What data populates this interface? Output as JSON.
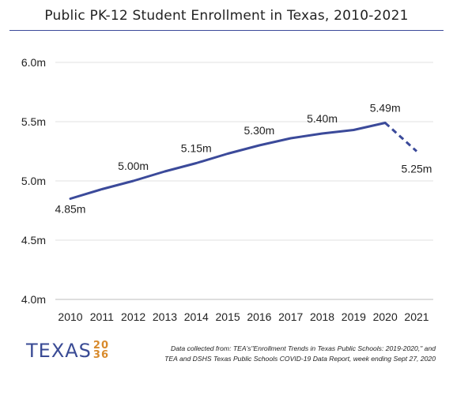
{
  "chart_data": {
    "type": "line",
    "title": "Public PK-12 Student Enrollment in Texas, 2010-2021",
    "xlabel": "",
    "ylabel": "",
    "x": [
      "2010",
      "2011",
      "2012",
      "2013",
      "2014",
      "2015",
      "2016",
      "2017",
      "2018",
      "2019",
      "2020",
      "2021"
    ],
    "y_ticks": [
      "4.0m",
      "4.5m",
      "5.0m",
      "5.5m",
      "6.0m"
    ],
    "ylim": [
      4.0,
      6.0
    ],
    "grid": true,
    "series": [
      {
        "values": [
          4.85,
          4.93,
          5.0,
          5.08,
          5.15,
          5.23,
          5.3,
          5.36,
          5.4,
          5.43,
          5.49,
          null
        ],
        "style": "solid",
        "color": "#3b4a9a"
      },
      {
        "values": [
          null,
          null,
          null,
          null,
          null,
          null,
          null,
          null,
          null,
          null,
          5.49,
          5.25
        ],
        "style": "dashed",
        "color": "#3b4a9a"
      }
    ],
    "data_labels": [
      {
        "x": "2010",
        "text": "4.85m"
      },
      {
        "x": "2012",
        "text": "5.00m"
      },
      {
        "x": "2014",
        "text": "5.15m"
      },
      {
        "x": "2016",
        "text": "5.30m"
      },
      {
        "x": "2018",
        "text": "5.40m"
      },
      {
        "x": "2020",
        "text": "5.49m"
      },
      {
        "x": "2021",
        "text": "5.25m"
      }
    ]
  },
  "logo": {
    "word": "TEXAS",
    "year_top": "20",
    "year_bottom": "36"
  },
  "source": {
    "line1": "Data collected from: TEA's\"Enrollment Trends in Texas Public Schools: 2019-2020,\" and",
    "line2": "TEA and DSHS Texas Public Schools COVID-19 Data Report, week ending Sept 27, 2020"
  }
}
